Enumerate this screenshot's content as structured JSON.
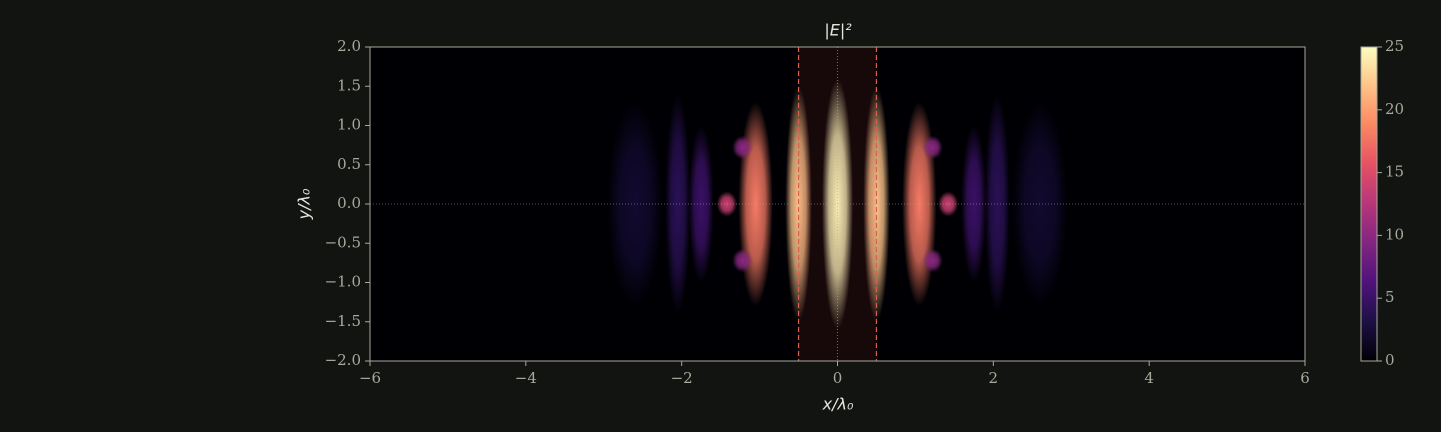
{
  "chart_data": {
    "type": "heatmap",
    "title": "|E|²",
    "x_label": "x/λ₀",
    "y_label": "y/λ₀",
    "colormap": "magma",
    "xlim": [
      -6,
      6
    ],
    "ylim": [
      -2,
      2
    ],
    "clim": [
      0,
      25
    ],
    "xticks": [
      {
        "value": -6,
        "label": "−6"
      },
      {
        "value": -4,
        "label": "−4"
      },
      {
        "value": -2,
        "label": "−2"
      },
      0,
      2,
      4,
      6
    ],
    "yticks": [
      {
        "value": 2,
        "label": "2.0"
      },
      {
        "value": 1.5,
        "label": "1.5"
      },
      {
        "value": 1,
        "label": "1.0"
      },
      {
        "value": 0.5,
        "label": "0.5"
      },
      {
        "value": 0,
        "label": "0.0"
      },
      {
        "value": -0.5,
        "label": "−0.5"
      },
      {
        "value": -1,
        "label": "−1.0"
      },
      {
        "value": -1.5,
        "label": "−1.5"
      },
      {
        "value": -2,
        "label": "−2.0"
      }
    ],
    "cticks": [
      0,
      5,
      10,
      15,
      20,
      25
    ],
    "slab": [
      -0.5,
      0.5
    ],
    "guides": {
      "x": 0,
      "y": 0
    },
    "spots": [
      {
        "x": 0,
        "y": 0,
        "value": 25,
        "width": 0.2,
        "height": 1.6
      },
      {
        "x": -0.5,
        "y": 0,
        "value": 22,
        "width": 0.17,
        "height": 1.5
      },
      {
        "x": 0.5,
        "y": 0,
        "value": 22,
        "width": 0.17,
        "height": 1.5
      },
      {
        "x": -1.05,
        "y": 0,
        "value": 18,
        "width": 0.22,
        "height": 1.3
      },
      {
        "x": 1.05,
        "y": 0,
        "value": 18,
        "width": 0.22,
        "height": 1.3
      },
      {
        "x": -1.42,
        "y": 0,
        "value": 14,
        "width": 0.13,
        "height": 0.16
      },
      {
        "x": 1.42,
        "y": 0,
        "value": 14,
        "width": 0.13,
        "height": 0.16
      },
      {
        "x": -1.22,
        "y": 0.72,
        "value": 10,
        "width": 0.13,
        "height": 0.15
      },
      {
        "x": 1.22,
        "y": 0.72,
        "value": 10,
        "width": 0.13,
        "height": 0.15
      },
      {
        "x": -1.22,
        "y": -0.72,
        "value": 10,
        "width": 0.13,
        "height": 0.15
      },
      {
        "x": 1.22,
        "y": -0.72,
        "value": 10,
        "width": 0.13,
        "height": 0.15
      },
      {
        "x": -1.75,
        "y": 0,
        "value": 5,
        "width": 0.16,
        "height": 1.0
      },
      {
        "x": 1.75,
        "y": 0,
        "value": 5,
        "width": 0.16,
        "height": 1.0
      },
      {
        "x": -2.05,
        "y": 0,
        "value": 4,
        "width": 0.16,
        "height": 1.4
      },
      {
        "x": 2.05,
        "y": 0,
        "value": 4,
        "width": 0.16,
        "height": 1.4
      },
      {
        "x": -2.6,
        "y": 0,
        "value": 2,
        "width": 0.35,
        "height": 1.3
      },
      {
        "x": 2.6,
        "y": 0,
        "value": 2,
        "width": 0.35,
        "height": 1.3
      }
    ]
  }
}
